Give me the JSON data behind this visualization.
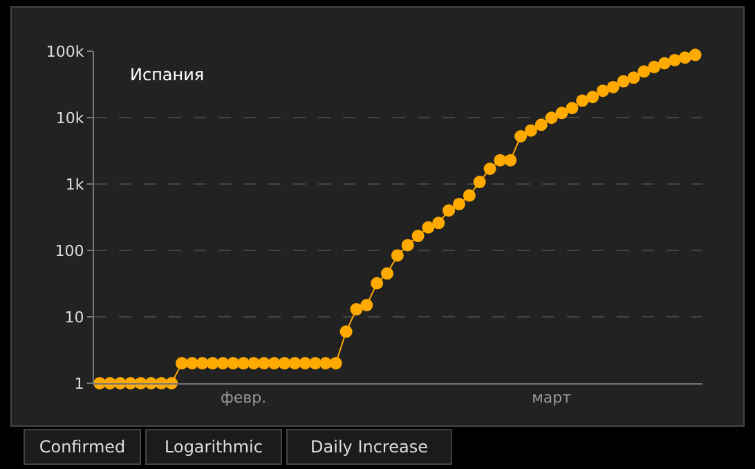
{
  "chart_data": {
    "type": "line",
    "title": "Испания",
    "categories": [
      null,
      null,
      null,
      null,
      null,
      null,
      null,
      null,
      null,
      null,
      null,
      null,
      null,
      null,
      "февр.",
      null,
      null,
      null,
      null,
      null,
      null,
      null,
      null,
      null,
      null,
      null,
      null,
      null,
      null,
      null,
      null,
      null,
      null,
      null,
      null,
      null,
      null,
      null,
      null,
      null,
      null,
      null,
      null,
      null,
      "март",
      null,
      null,
      null,
      null,
      null,
      null,
      null,
      null,
      null,
      null,
      null,
      null,
      null,
      null
    ],
    "series": [
      {
        "color": "#ffaa00",
        "values": [
          1,
          1,
          1,
          1,
          1,
          1,
          1,
          1,
          2,
          2,
          2,
          2,
          2,
          2,
          2,
          2,
          2,
          2,
          2,
          2,
          2,
          2,
          2,
          2,
          6,
          13,
          15,
          32,
          45,
          84,
          120,
          165,
          222,
          259,
          400,
          500,
          673,
          1073,
          1695,
          2277,
          2277,
          5232,
          6391,
          7798,
          9942,
          11748,
          13910,
          17963,
          20410,
          25374,
          28768,
          35136,
          39885,
          49515,
          57786,
          65719,
          73235,
          80110,
          87956
        ]
      }
    ],
    "log": "y",
    "ylim": [
      1,
      100000
    ],
    "yticks": [
      1,
      10,
      100,
      {
        "value": 1000,
        "label": "1k"
      },
      {
        "value": 10000,
        "label": "10k"
      },
      {
        "value": 100000,
        "label": "100k"
      }
    ],
    "grid": "y",
    "marker": "circle",
    "line_style": "solid",
    "annotations": [
      "Confirmed",
      "Logarithmic",
      "Daily Increase"
    ]
  }
}
